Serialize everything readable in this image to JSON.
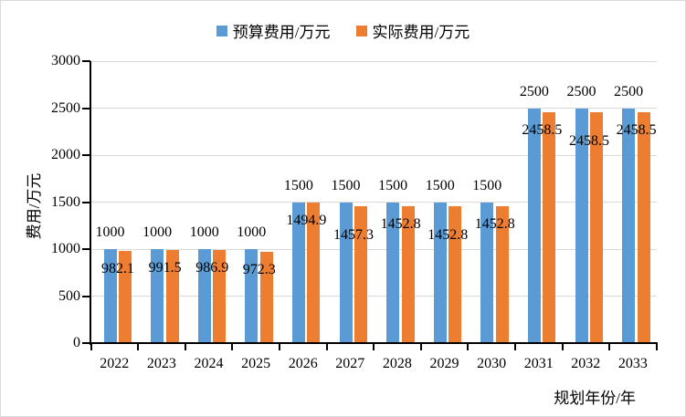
{
  "chart_data": {
    "type": "bar",
    "title": "",
    "categories": [
      "2022",
      "2023",
      "2024",
      "2025",
      "2026",
      "2027",
      "2028",
      "2029",
      "2030",
      "2031",
      "2032",
      "2033"
    ],
    "series": [
      {
        "name": "预算费用/万元",
        "color": "#5B9BD5",
        "values": [
          1000,
          1000,
          1000,
          1000,
          1500,
          1500,
          1500,
          1500,
          1500,
          2500,
          2500,
          2500
        ]
      },
      {
        "name": "实际费用/万元",
        "color": "#ED7D31",
        "values": [
          982.1,
          991.5,
          986.9,
          972.3,
          1494.9,
          1457.3,
          1452.8,
          1452.8,
          1452.8,
          2458.5,
          2458.5,
          2458.5
        ]
      }
    ],
    "xlabel": "规划年份/年",
    "ylabel": "费用/万元",
    "ylim": [
      0,
      3000
    ],
    "yticks": [
      0,
      500,
      1000,
      1500,
      2000,
      2500,
      3000
    ],
    "grid": true,
    "legend_position": "top",
    "data_labels": true,
    "actual_label_low_rows": [
      0,
      0,
      0,
      0,
      0,
      1,
      0,
      1,
      0,
      0,
      1,
      0
    ]
  },
  "colors": {
    "budget_bar": "#5B9BD5",
    "actual_bar": "#ED7D31",
    "axis": "#000000",
    "gridline": "#D9D9D9",
    "label_text": "#000000",
    "background": "#FFFFFF",
    "border": "#D9D9D9"
  }
}
